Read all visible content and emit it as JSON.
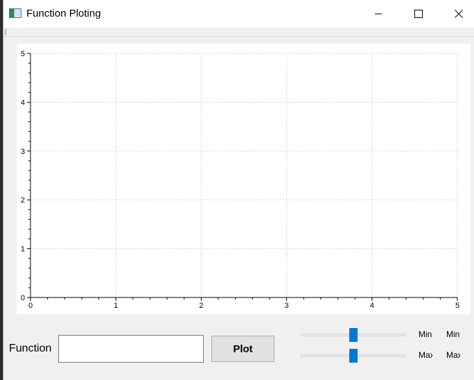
{
  "window": {
    "title": "Function Ploting",
    "controls": {
      "minimize_icon": "minimize-icon",
      "maximize_icon": "maximize-icon",
      "close_icon": "close-icon"
    }
  },
  "chart_data": {
    "type": "line",
    "title": "",
    "xlabel": "",
    "ylabel": "",
    "xlim": [
      0,
      5
    ],
    "ylim": [
      0,
      5
    ],
    "x_ticks": [
      "0",
      "1",
      "2",
      "3",
      "4",
      "5"
    ],
    "y_ticks": [
      "0",
      "1",
      "2",
      "3",
      "4",
      "5"
    ],
    "grid": true,
    "series": []
  },
  "controls": {
    "function_label": "Function",
    "function_value": "",
    "plot_label": "Plot",
    "min_slider_value": 0.5,
    "max_slider_value": 0.5,
    "min_label_1": "Min",
    "min_label_2": "Min",
    "max_label_1": "Max",
    "max_label_2": "Max"
  },
  "colors": {
    "accent": "#0078d7",
    "grid": "#bdbdbd"
  }
}
